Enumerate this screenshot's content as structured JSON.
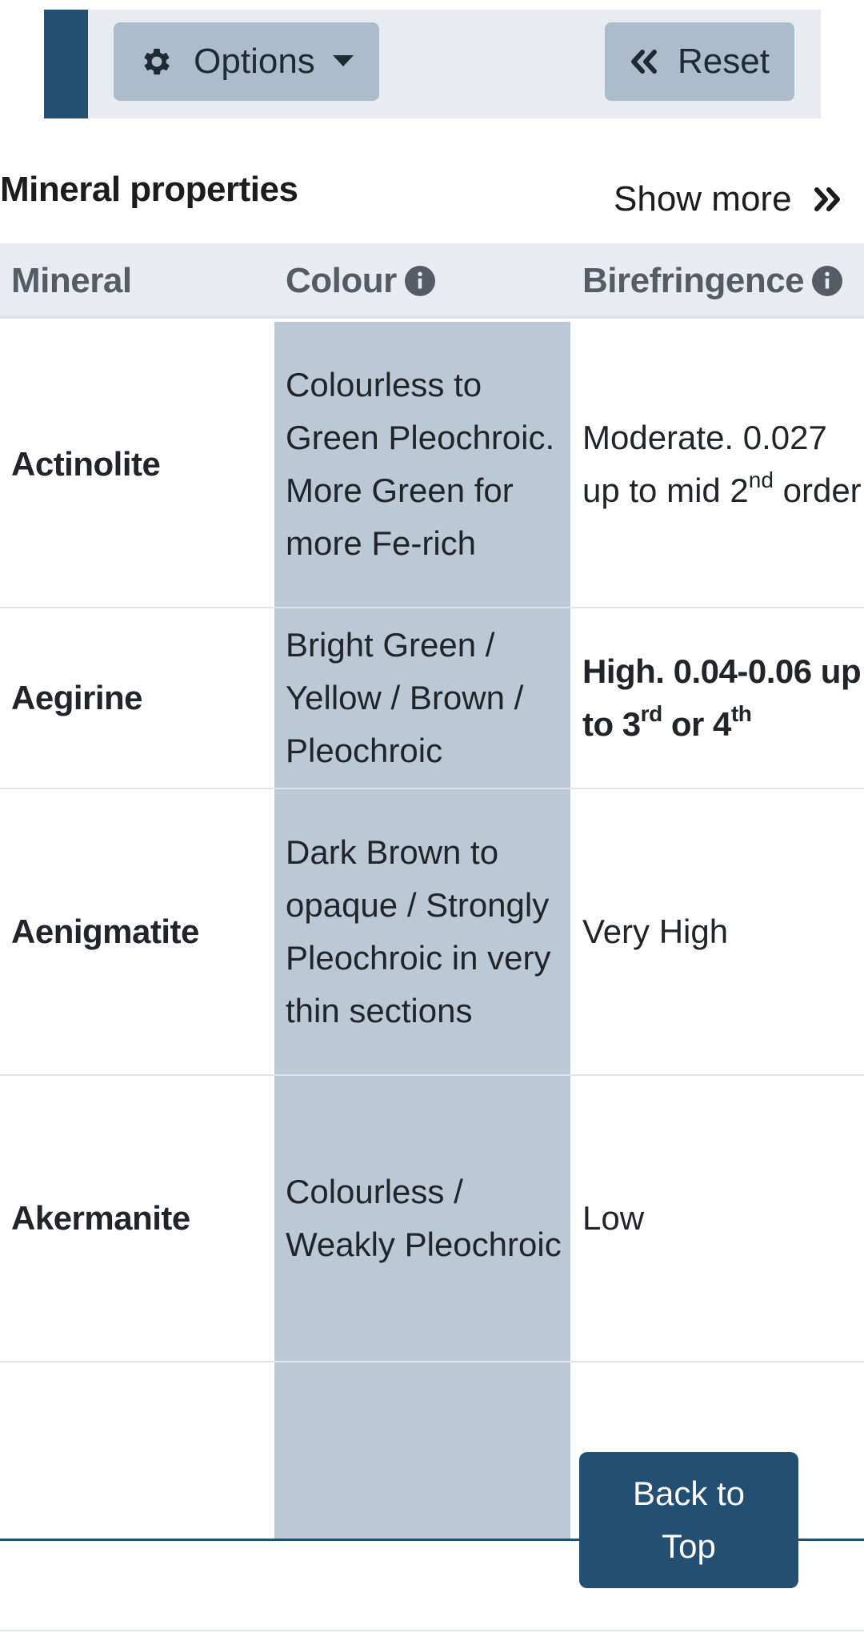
{
  "toolbar": {
    "options_label": "Options",
    "reset_label": "Reset",
    "accent_color": "#234f72",
    "button_color": "#adbccb"
  },
  "section": {
    "title": "Mineral properties",
    "show_more_label": "Show more"
  },
  "table": {
    "columns": [
      {
        "label": "Mineral",
        "info": false
      },
      {
        "label": "Colour",
        "info": true
      },
      {
        "label": "Birefringence",
        "info": true
      }
    ],
    "rows": [
      {
        "mineral": "Actinolite",
        "colour": "Colourless to Green Pleochroic. More Green for more Fe-rich",
        "bire_text": "Moderate. 0.027 up to mid 2",
        "bire_sup1": "nd",
        "bire_mid": " order",
        "bire_sup2": "",
        "bire_end": ""
      },
      {
        "mineral": "Aegirine",
        "colour": "Bright Green / Yellow / Brown / Pleochroic",
        "bire_text": "High. 0.04-0.06 up to 3",
        "bire_sup1": "rd",
        "bire_mid": " or 4",
        "bire_sup2": "th",
        "bire_end": ""
      },
      {
        "mineral": "Aenigmatite",
        "colour": "Dark Brown to opaque / Strongly Pleochroic in very thin sections",
        "bire_text": "Very High",
        "bire_sup1": "",
        "bire_mid": "",
        "bire_sup2": "",
        "bire_end": ""
      },
      {
        "mineral": "Akermanite",
        "colour": "Colourless / Weakly Pleochroic",
        "bire_text": "Low",
        "bire_sup1": "",
        "bire_mid": "",
        "bire_sup2": "",
        "bire_end": ""
      }
    ]
  },
  "back_to_top": {
    "line1": "Back to",
    "line2": "Top"
  }
}
